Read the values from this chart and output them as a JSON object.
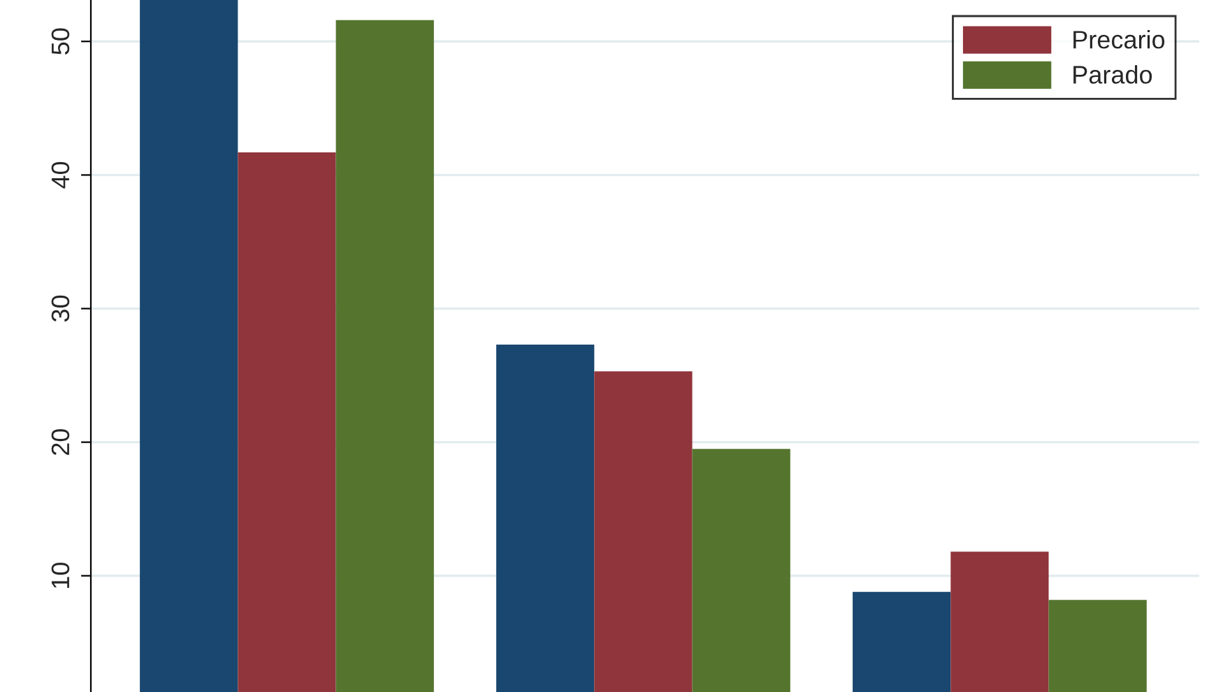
{
  "chart_data": {
    "type": "bar",
    "categories": [
      null,
      null,
      null
    ],
    "series": [
      {
        "color": "#1a476f",
        "values": [
          53.1,
          27.3,
          8.8
        ]
      },
      {
        "name": "Precario",
        "color": "#90353b",
        "values": [
          41.7,
          25.3,
          11.8
        ]
      },
      {
        "name": "Parado",
        "color": "#55752f",
        "values": [
          51.6,
          19.5,
          8.2
        ]
      }
    ],
    "ylim": [
      1.3,
      53.1
    ],
    "yticks": [
      10,
      20,
      30,
      40,
      50
    ],
    "grid": "y",
    "legend": "top right"
  }
}
